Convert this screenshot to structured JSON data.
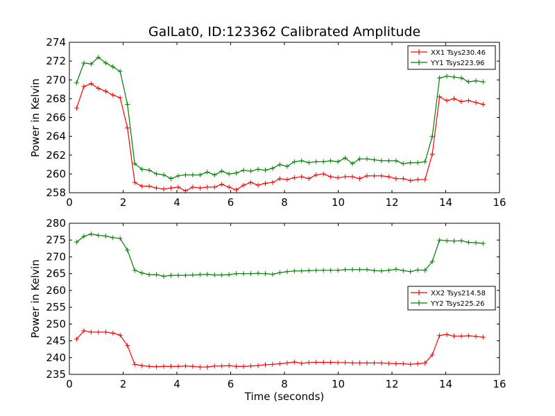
{
  "chart_data": [
    {
      "type": "line",
      "title": "GalLat0, ID:123362 Calibrated Amplitude",
      "xlabel": "",
      "ylabel": "Power in Kelvin",
      "xlim": [
        0,
        16
      ],
      "ylim": [
        258,
        274
      ],
      "xticks": [
        "0",
        "2",
        "4",
        "6",
        "8",
        "10",
        "12",
        "14",
        "16"
      ],
      "yticks": [
        "258",
        "260",
        "262",
        "264",
        "266",
        "268",
        "270",
        "272",
        "274"
      ],
      "legend_position": "top-right",
      "x": [
        0.27,
        0.54,
        0.81,
        1.08,
        1.35,
        1.62,
        1.89,
        2.16,
        2.43,
        2.7,
        2.97,
        3.24,
        3.51,
        3.78,
        4.05,
        4.32,
        4.59,
        4.86,
        5.13,
        5.4,
        5.67,
        5.94,
        6.21,
        6.48,
        6.75,
        7.02,
        7.29,
        7.56,
        7.83,
        8.1,
        8.37,
        8.64,
        8.91,
        9.18,
        9.45,
        9.72,
        9.99,
        10.26,
        10.53,
        10.8,
        11.07,
        11.34,
        11.61,
        11.88,
        12.15,
        12.42,
        12.69,
        12.96,
        13.23,
        13.5,
        13.77,
        14.04,
        14.31,
        14.58,
        14.85,
        15.12,
        15.39
      ],
      "series": [
        {
          "name": "XX1 Tsys230.46",
          "color": "#ff0000",
          "values": [
            267.0,
            269.3,
            269.6,
            269.1,
            268.8,
            268.4,
            268.1,
            264.9,
            259.1,
            258.7,
            258.7,
            258.5,
            258.4,
            258.5,
            258.6,
            258.2,
            258.6,
            258.5,
            258.6,
            258.6,
            258.9,
            258.6,
            258.3,
            258.8,
            259.1,
            258.8,
            259.0,
            259.1,
            259.5,
            259.4,
            259.6,
            259.7,
            259.5,
            259.9,
            260.0,
            259.7,
            259.6,
            259.7,
            259.7,
            259.5,
            259.8,
            259.8,
            259.8,
            259.7,
            259.5,
            259.5,
            259.3,
            259.4,
            259.4,
            262.1,
            268.2,
            267.8,
            268.0,
            267.7,
            267.8,
            267.6,
            267.4
          ]
        },
        {
          "name": "YY1 Tsys223.96",
          "color": "#008000",
          "values": [
            269.7,
            271.8,
            271.7,
            272.4,
            271.8,
            271.4,
            270.9,
            267.4,
            261.1,
            260.5,
            260.4,
            260.0,
            259.9,
            259.5,
            259.8,
            259.9,
            259.9,
            259.9,
            260.2,
            259.9,
            260.3,
            260.0,
            260.1,
            260.4,
            260.3,
            260.5,
            260.4,
            260.6,
            261.0,
            260.8,
            261.3,
            261.4,
            261.2,
            261.3,
            261.3,
            261.4,
            261.3,
            261.7,
            261.1,
            261.6,
            261.6,
            261.5,
            261.4,
            261.4,
            261.4,
            261.1,
            261.2,
            261.2,
            261.3,
            264.0,
            270.2,
            270.4,
            270.3,
            270.2,
            269.8,
            269.9,
            269.8
          ]
        }
      ]
    },
    {
      "type": "line",
      "title": "",
      "xlabel": "Time (seconds)",
      "ylabel": "Power in Kelvin",
      "xlim": [
        0,
        16
      ],
      "ylim": [
        235,
        280
      ],
      "xticks": [
        "0",
        "2",
        "4",
        "6",
        "8",
        "10",
        "12",
        "14",
        "16"
      ],
      "yticks": [
        "235",
        "240",
        "245",
        "250",
        "255",
        "260",
        "265",
        "270",
        "275",
        "280"
      ],
      "legend_position": "center-right",
      "x": [
        0.27,
        0.54,
        0.81,
        1.08,
        1.35,
        1.62,
        1.89,
        2.16,
        2.43,
        2.7,
        2.97,
        3.24,
        3.51,
        3.78,
        4.05,
        4.32,
        4.59,
        4.86,
        5.13,
        5.4,
        5.67,
        5.94,
        6.21,
        6.48,
        6.75,
        7.02,
        7.29,
        7.56,
        7.83,
        8.1,
        8.37,
        8.64,
        8.91,
        9.18,
        9.45,
        9.72,
        9.99,
        10.26,
        10.53,
        10.8,
        11.07,
        11.34,
        11.61,
        11.88,
        12.15,
        12.42,
        12.69,
        12.96,
        13.23,
        13.5,
        13.77,
        14.04,
        14.31,
        14.58,
        14.85,
        15.12,
        15.39
      ],
      "series": [
        {
          "name": "XX2 Tsys214.58",
          "color": "#ff0000",
          "values": [
            245.5,
            248.0,
            247.6,
            247.6,
            247.6,
            247.3,
            246.7,
            243.6,
            238.0,
            237.6,
            237.4,
            237.3,
            237.4,
            237.4,
            237.4,
            237.5,
            237.4,
            237.2,
            237.2,
            237.5,
            237.5,
            237.6,
            237.4,
            237.4,
            237.5,
            237.6,
            237.9,
            238.0,
            238.2,
            238.4,
            238.7,
            238.3,
            238.5,
            238.6,
            238.6,
            238.6,
            238.5,
            238.5,
            238.4,
            238.4,
            238.4,
            238.4,
            238.4,
            238.3,
            238.2,
            238.2,
            238.0,
            238.2,
            238.4,
            240.8,
            246.6,
            246.9,
            246.4,
            246.4,
            246.5,
            246.3,
            246.1
          ]
        },
        {
          "name": "YY2 Tsys225.26",
          "color": "#008000",
          "values": [
            274.4,
            276.1,
            276.8,
            276.4,
            276.2,
            275.7,
            275.5,
            272.0,
            266.0,
            265.2,
            264.7,
            264.7,
            264.2,
            264.5,
            264.5,
            264.5,
            264.6,
            264.7,
            264.8,
            264.6,
            264.6,
            264.7,
            265.0,
            265.0,
            265.0,
            265.1,
            265.0,
            264.8,
            265.3,
            265.6,
            265.8,
            265.8,
            265.9,
            266.0,
            266.0,
            266.0,
            266.0,
            266.2,
            266.2,
            266.2,
            266.2,
            265.9,
            265.8,
            266.0,
            266.3,
            265.9,
            265.6,
            266.1,
            266.0,
            268.6,
            275.0,
            274.8,
            274.7,
            274.8,
            274.3,
            274.2,
            274.0
          ]
        }
      ]
    }
  ]
}
